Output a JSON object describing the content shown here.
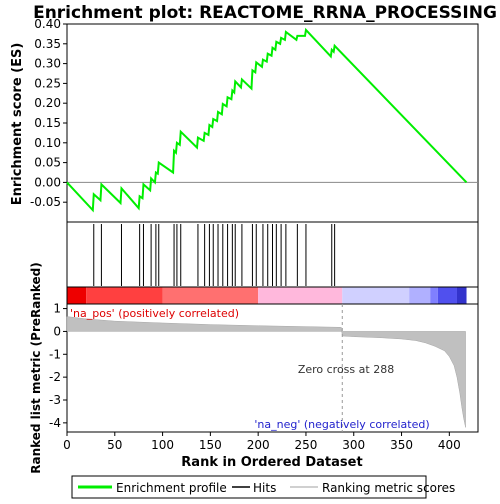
{
  "chart_data": {
    "type": "line",
    "title": "Enrichment plot: REACTOME_RRNA_PROCESSING",
    "xlabel": "Rank in Ordered Dataset",
    "xlim": [
      0,
      430
    ],
    "x_ticks": [
      "0",
      "50",
      "100",
      "150",
      "200",
      "250",
      "300",
      "350",
      "400"
    ],
    "panels": {
      "enrichment": {
        "ylabel": "Enrichment score (ES)",
        "ylim": [
          -0.1,
          0.4
        ],
        "y_ticks": [
          "-0.05",
          "0.00",
          "0.05",
          "0.10",
          "0.15",
          "0.20",
          "0.25",
          "0.30",
          "0.35",
          "0.40"
        ],
        "series": [
          {
            "name": "Enrichment profile",
            "color": "#00ee00",
            "points": [
              [
                0,
                0
              ],
              [
                27,
                -0.07
              ],
              [
                28,
                -0.03
              ],
              [
                35,
                -0.045
              ],
              [
                36,
                -0.005
              ],
              [
                56,
                -0.052
              ],
              [
                57,
                -0.015
              ],
              [
                75,
                -0.065
              ],
              [
                76,
                -0.035
              ],
              [
                79,
                -0.04
              ],
              [
                80,
                -0.005
              ],
              [
                87,
                -0.02
              ],
              [
                88,
                0.01
              ],
              [
                92,
                0.0
              ],
              [
                93,
                0.025
              ],
              [
                95,
                0.022
              ],
              [
                96,
                0.05
              ],
              [
                111,
                0.025
              ],
              [
                112,
                0.08
              ],
              [
                114,
                0.075
              ],
              [
                115,
                0.1
              ],
              [
                118,
                0.095
              ],
              [
                119,
                0.128
              ],
              [
                136,
                0.088
              ],
              [
                137,
                0.113
              ],
              [
                143,
                0.105
              ],
              [
                144,
                0.125
              ],
              [
                148,
                0.12
              ],
              [
                149,
                0.145
              ],
              [
                152,
                0.14
              ],
              [
                153,
                0.16
              ],
              [
                157,
                0.155
              ],
              [
                158,
                0.178
              ],
              [
                162,
                0.172
              ],
              [
                163,
                0.198
              ],
              [
                167,
                0.192
              ],
              [
                168,
                0.215
              ],
              [
                172,
                0.21
              ],
              [
                173,
                0.232
              ],
              [
                175,
                0.227
              ],
              [
                176,
                0.255
              ],
              [
                182,
                0.24
              ],
              [
                183,
                0.26
              ],
              [
                193,
                0.237
              ],
              [
                194,
                0.283
              ],
              [
                197,
                0.278
              ],
              [
                198,
                0.303
              ],
              [
                204,
                0.292
              ],
              [
                205,
                0.31
              ],
              [
                209,
                0.305
              ],
              [
                210,
                0.325
              ],
              [
                214,
                0.32
              ],
              [
                215,
                0.34
              ],
              [
                218,
                0.335
              ],
              [
                219,
                0.355
              ],
              [
                223,
                0.35
              ],
              [
                224,
                0.365
              ],
              [
                228,
                0.36
              ],
              [
                229,
                0.38
              ],
              [
                240,
                0.36
              ],
              [
                241,
                0.37
              ],
              [
                249,
                0.37
              ],
              [
                250,
                0.385
              ],
              [
                276,
                0.318
              ],
              [
                277,
                0.335
              ],
              [
                279,
                0.33
              ],
              [
                280,
                0.345
              ],
              [
                418,
                0
              ]
            ]
          }
        ]
      },
      "hits": {
        "name": "Hits",
        "color": "#000000",
        "positions": [
          28,
          36,
          57,
          76,
          80,
          88,
          93,
          96,
          112,
          115,
          119,
          137,
          144,
          149,
          153,
          158,
          163,
          168,
          173,
          176,
          183,
          194,
          198,
          205,
          210,
          215,
          219,
          224,
          229,
          241,
          250,
          277,
          280
        ]
      },
      "ranked_metric": {
        "ylabel": "Ranked list metric (PreRanked)",
        "ylim": [
          -4.4,
          1.2
        ],
        "y_ticks": [
          "1",
          "0",
          "-1",
          "-2",
          "-3",
          "-4"
        ],
        "series": [
          {
            "name": "Ranking metric scores",
            "color": "#c0c0c0",
            "points": [
              [
                0,
                0.65
              ],
              [
                20,
                0.55
              ],
              [
                50,
                0.45
              ],
              [
                100,
                0.37
              ],
              [
                150,
                0.3
              ],
              [
                200,
                0.25
              ],
              [
                250,
                0.21
              ],
              [
                287,
                0.18
              ],
              [
                288,
                -0.2
              ],
              [
                300,
                -0.23
              ],
              [
                330,
                -0.28
              ],
              [
                350,
                -0.33
              ],
              [
                365,
                -0.4
              ],
              [
                375,
                -0.5
              ],
              [
                385,
                -0.65
              ],
              [
                395,
                -0.85
              ],
              [
                400,
                -1.1
              ],
              [
                405,
                -1.5
              ],
              [
                408,
                -2.0
              ],
              [
                411,
                -2.7
              ],
              [
                413,
                -3.3
              ],
              [
                415,
                -3.8
              ],
              [
                417,
                -4.2
              ]
            ]
          }
        ],
        "annotations": {
          "positive": "'na_pos' (positively correlated)",
          "negative": "'na_neg' (negatively correlated)",
          "zero_cross": "Zero cross at 288"
        }
      }
    },
    "heat_bar": [
      {
        "x0": 0,
        "x1": 20,
        "color": "#ee0000"
      },
      {
        "x0": 20,
        "x1": 100,
        "color": "#ff4040"
      },
      {
        "x0": 100,
        "x1": 200,
        "color": "#ff7070"
      },
      {
        "x0": 200,
        "x1": 288,
        "color": "#ffb8dc"
      },
      {
        "x0": 288,
        "x1": 358,
        "color": "#d0d0ff"
      },
      {
        "x0": 358,
        "x1": 380,
        "color": "#b0b0ff"
      },
      {
        "x0": 380,
        "x1": 388,
        "color": "#8080ff"
      },
      {
        "x0": 388,
        "x1": 408,
        "color": "#5050ee"
      },
      {
        "x0": 408,
        "x1": 418,
        "color": "#3333cc"
      }
    ],
    "legend": {
      "placement": "bottom",
      "items": [
        "Enrichment profile",
        "Hits",
        "Ranking metric scores"
      ]
    }
  }
}
